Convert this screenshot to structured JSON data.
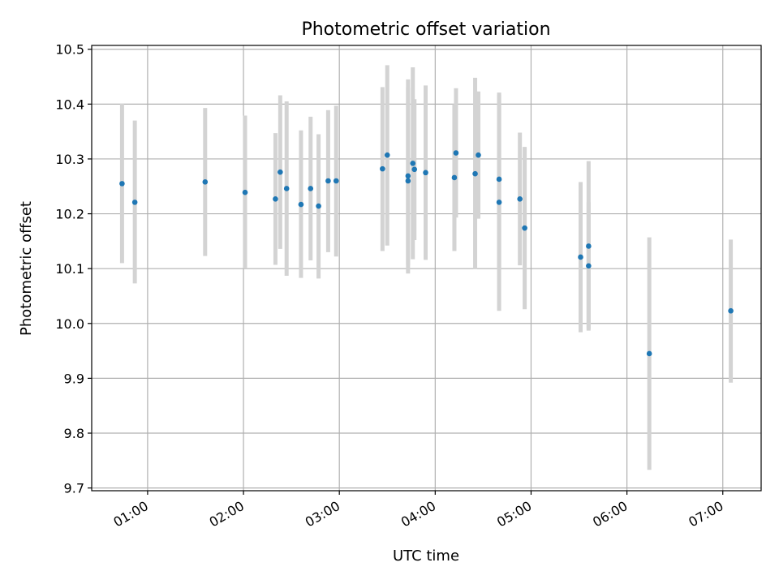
{
  "chart_data": {
    "type": "scatter",
    "title": "Photometric offset variation",
    "xlabel": "UTC time",
    "ylabel": "Photometric offset",
    "xlim": [
      "00:25",
      "07:24"
    ],
    "ylim": [
      9.695,
      10.507
    ],
    "grid": true,
    "x_ticks": [
      "01:00",
      "02:00",
      "03:00",
      "04:00",
      "05:00",
      "06:00",
      "07:00"
    ],
    "y_ticks": [
      "9.7",
      "9.8",
      "9.9",
      "10.0",
      "10.1",
      "10.2",
      "10.3",
      "10.4",
      "10.5"
    ],
    "point_color": "#1f77b4",
    "errorbar_color": "#d3d3d3",
    "points": [
      {
        "t": "00:44",
        "y": 10.255,
        "lo": 10.11,
        "hi": 10.401
      },
      {
        "t": "00:52",
        "y": 10.221,
        "lo": 10.073,
        "hi": 10.37
      },
      {
        "t": "01:36",
        "y": 10.258,
        "lo": 10.123,
        "hi": 10.393
      },
      {
        "t": "02:01",
        "y": 10.239,
        "lo": 10.1,
        "hi": 10.379
      },
      {
        "t": "02:20",
        "y": 10.227,
        "lo": 10.107,
        "hi": 10.347
      },
      {
        "t": "02:23",
        "y": 10.276,
        "lo": 10.136,
        "hi": 10.416
      },
      {
        "t": "02:27",
        "y": 10.246,
        "lo": 10.087,
        "hi": 10.405
      },
      {
        "t": "02:36",
        "y": 10.217,
        "lo": 10.083,
        "hi": 10.352
      },
      {
        "t": "02:42",
        "y": 10.246,
        "lo": 10.115,
        "hi": 10.377
      },
      {
        "t": "02:47",
        "y": 10.214,
        "lo": 10.082,
        "hi": 10.345
      },
      {
        "t": "02:53",
        "y": 10.26,
        "lo": 10.13,
        "hi": 10.389
      },
      {
        "t": "02:58",
        "y": 10.26,
        "lo": 10.122,
        "hi": 10.397
      },
      {
        "t": "03:27",
        "y": 10.282,
        "lo": 10.132,
        "hi": 10.431
      },
      {
        "t": "03:30",
        "y": 10.307,
        "lo": 10.142,
        "hi": 10.471
      },
      {
        "t": "03:43",
        "y": 10.26,
        "lo": 10.091,
        "hi": 10.445
      },
      {
        "t": "03:43",
        "y": 10.269,
        "lo": 10.107,
        "hi": 10.43
      },
      {
        "t": "03:46",
        "y": 10.292,
        "lo": 10.117,
        "hi": 10.467
      },
      {
        "t": "03:47",
        "y": 10.281,
        "lo": 10.152,
        "hi": 10.409
      },
      {
        "t": "03:54",
        "y": 10.275,
        "lo": 10.116,
        "hi": 10.434
      },
      {
        "t": "04:12",
        "y": 10.266,
        "lo": 10.132,
        "hi": 10.4
      },
      {
        "t": "04:13",
        "y": 10.311,
        "lo": 10.193,
        "hi": 10.429
      },
      {
        "t": "04:25",
        "y": 10.273,
        "lo": 10.099,
        "hi": 10.448
      },
      {
        "t": "04:27",
        "y": 10.307,
        "lo": 10.191,
        "hi": 10.423
      },
      {
        "t": "04:40",
        "y": 10.263,
        "lo": 10.1,
        "hi": 10.421
      },
      {
        "t": "04:40",
        "y": 10.221,
        "lo": 10.023,
        "hi": 10.417
      },
      {
        "t": "04:53",
        "y": 10.227,
        "lo": 10.106,
        "hi": 10.348
      },
      {
        "t": "04:56",
        "y": 10.174,
        "lo": 10.026,
        "hi": 10.322
      },
      {
        "t": "05:31",
        "y": 10.121,
        "lo": 9.984,
        "hi": 10.258
      },
      {
        "t": "05:36",
        "y": 10.141,
        "lo": 9.987,
        "hi": 10.296
      },
      {
        "t": "05:36",
        "y": 10.105,
        "lo": 9.99,
        "hi": 10.221
      },
      {
        "t": "06:14",
        "y": 9.945,
        "lo": 9.733,
        "hi": 10.157
      },
      {
        "t": "07:05",
        "y": 10.023,
        "lo": 9.892,
        "hi": 10.153
      }
    ]
  }
}
